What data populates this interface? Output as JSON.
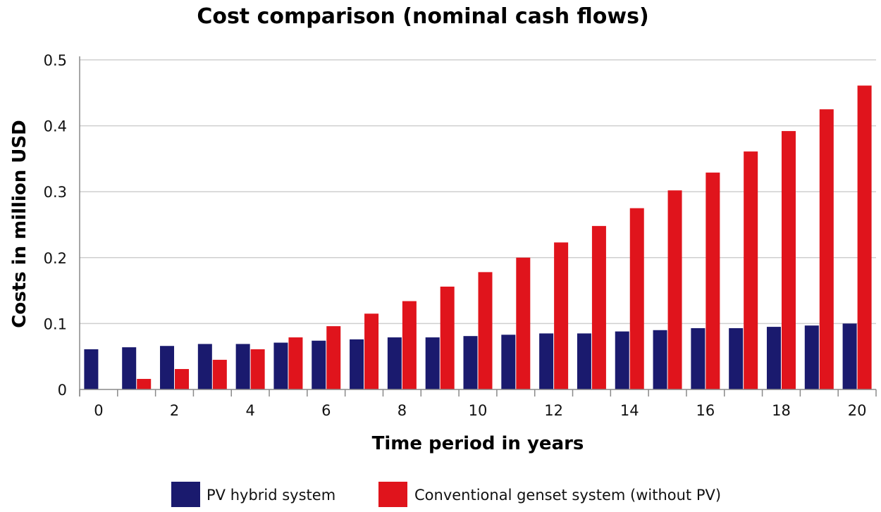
{
  "chart_data": {
    "type": "bar",
    "title": "Cost comparison (nominal cash flows)",
    "xlabel": "Time period in years",
    "ylabel": "Costs in million USD",
    "ylim": [
      0,
      0.5
    ],
    "yticks": [
      0,
      0.1,
      0.2,
      0.3,
      0.4,
      0.5
    ],
    "ytick_labels": [
      "0",
      "0.1",
      "0.2",
      "0.3",
      "0.4",
      "0.5"
    ],
    "grid": true,
    "legend_position": "bottom",
    "categories": [
      0,
      1,
      2,
      3,
      4,
      5,
      6,
      7,
      8,
      9,
      10,
      11,
      12,
      13,
      14,
      15,
      16,
      17,
      18,
      19,
      20
    ],
    "xtick_labels": [
      "0",
      "",
      "2",
      "",
      "4",
      "",
      "6",
      "",
      "8",
      "",
      "10",
      "",
      "12",
      "",
      "14",
      "",
      "16",
      "",
      "18",
      "",
      "20"
    ],
    "series": [
      {
        "name": "PV hybrid system",
        "color": "#1a1a6e",
        "values": [
          0.061,
          0.064,
          0.066,
          0.069,
          0.069,
          0.071,
          0.074,
          0.076,
          0.079,
          0.079,
          0.081,
          0.083,
          0.085,
          0.085,
          0.088,
          0.09,
          0.093,
          0.093,
          0.095,
          0.097,
          0.1
        ]
      },
      {
        "name": "Conventional genset system (without PV)",
        "color": "#e0141c",
        "values": [
          0,
          0.016,
          0.031,
          0.045,
          0.061,
          0.079,
          0.096,
          0.115,
          0.134,
          0.156,
          0.178,
          0.2,
          0.223,
          0.248,
          0.275,
          0.302,
          0.329,
          0.361,
          0.392,
          0.425,
          0.461
        ]
      }
    ]
  }
}
